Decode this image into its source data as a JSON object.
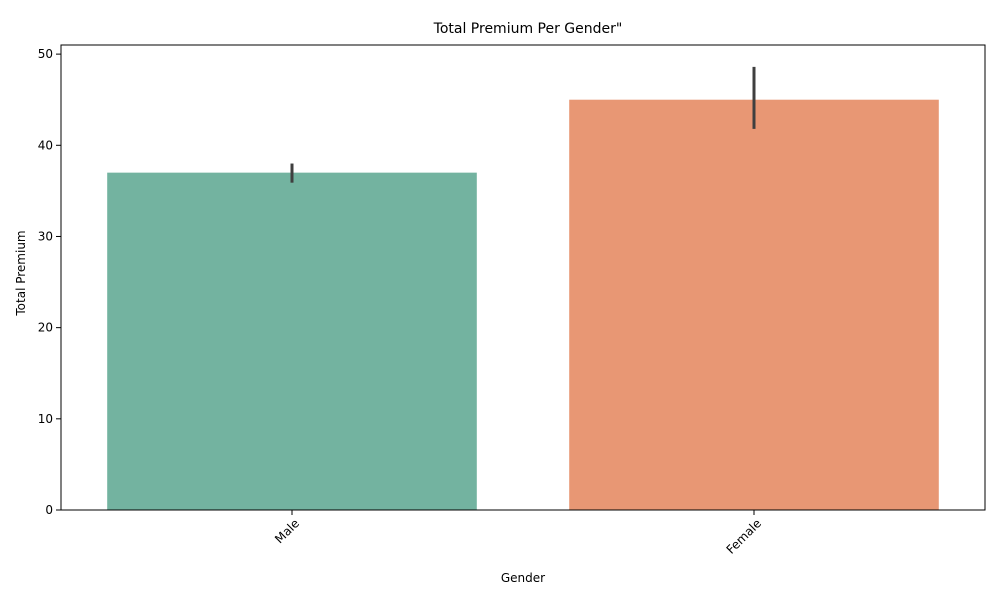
{
  "chart_data": {
    "type": "bar",
    "title": "Total Premium Per Gender\"",
    "xlabel": "Gender",
    "ylabel": "Total Premium",
    "categories": [
      "Male",
      "Female"
    ],
    "values": [
      37,
      45
    ],
    "error_bars": [
      {
        "low": 35.9,
        "high": 38.0
      },
      {
        "low": 41.8,
        "high": 48.6
      }
    ],
    "colors": [
      "#73b3a0",
      "#e89774"
    ],
    "error_color": "#3f3f3f",
    "ylim": [
      0,
      51
    ],
    "yticks": [
      0,
      10,
      20,
      30,
      40,
      50
    ],
    "xtick_rotation": 45,
    "grid": false,
    "legend": "none"
  }
}
